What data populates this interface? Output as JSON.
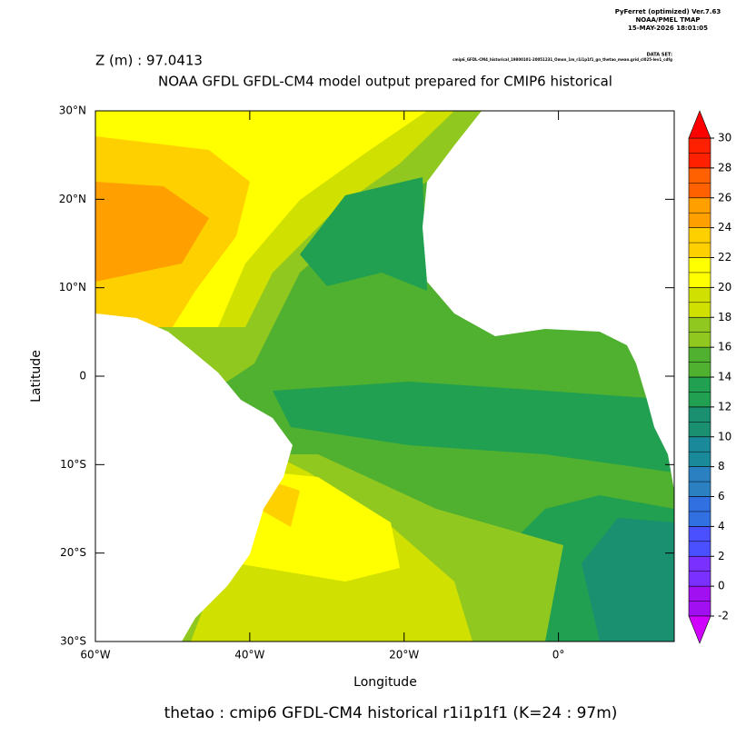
{
  "chart_data": {
    "type": "contour",
    "software": "PyFerret (optimized) Ver.7.63",
    "organization": "NOAA/PMEL TMAP",
    "timestamp": "15-MAY-2026 18:01:05",
    "dataset_label": "DATA SET:",
    "dataset": "cmip6_GFDL-CM4_historical_19800101-20051231_Omon_1m_r1i1p1f1_gn_thetao_mean.grid_cl025-lev1_cdfg",
    "subtitle": "Z (m) : 97.0413",
    "title": "NOAA GFDL GFDL-CM4 model output prepared for CMIP6 historical",
    "xlabel": "Longitude",
    "ylabel": "Latitude",
    "footer": "thetao : cmip6 GFDL-CM4 historical r1i1p1f1   (K=24 : 97m)",
    "xlim": [
      -60,
      15
    ],
    "ylim": [
      -30,
      30
    ],
    "xticks": [
      {
        "value": -60,
        "label": "60°W"
      },
      {
        "value": -40,
        "label": "40°W"
      },
      {
        "value": -20,
        "label": "20°W"
      },
      {
        "value": 0,
        "label": "0°"
      }
    ],
    "yticks": [
      {
        "value": -30,
        "label": "30°S"
      },
      {
        "value": -20,
        "label": "20°S"
      },
      {
        "value": -10,
        "label": "10°S"
      },
      0,
      {
        "value": 10,
        "label": "10°N"
      },
      {
        "value": 20,
        "label": "20°N"
      },
      {
        "value": 30,
        "label": "30°N"
      }
    ],
    "colorbar": {
      "ticks": [
        -2,
        0,
        2,
        4,
        6,
        8,
        10,
        12,
        14,
        16,
        18,
        20,
        22,
        24,
        26,
        28,
        30
      ],
      "colors": [
        "#a010f0",
        "#7a30ff",
        "#4a50ff",
        "#3070e0",
        "#2a80c0",
        "#1a8a9a",
        "#1a9070",
        "#20a050",
        "#50b030",
        "#90c820",
        "#d0e000",
        "#ffff00",
        "#ffd000",
        "#ffa000",
        "#ff6000",
        "#ff2000"
      ],
      "under_color": "#d000ff",
      "over_color": "#ff0000"
    }
  }
}
